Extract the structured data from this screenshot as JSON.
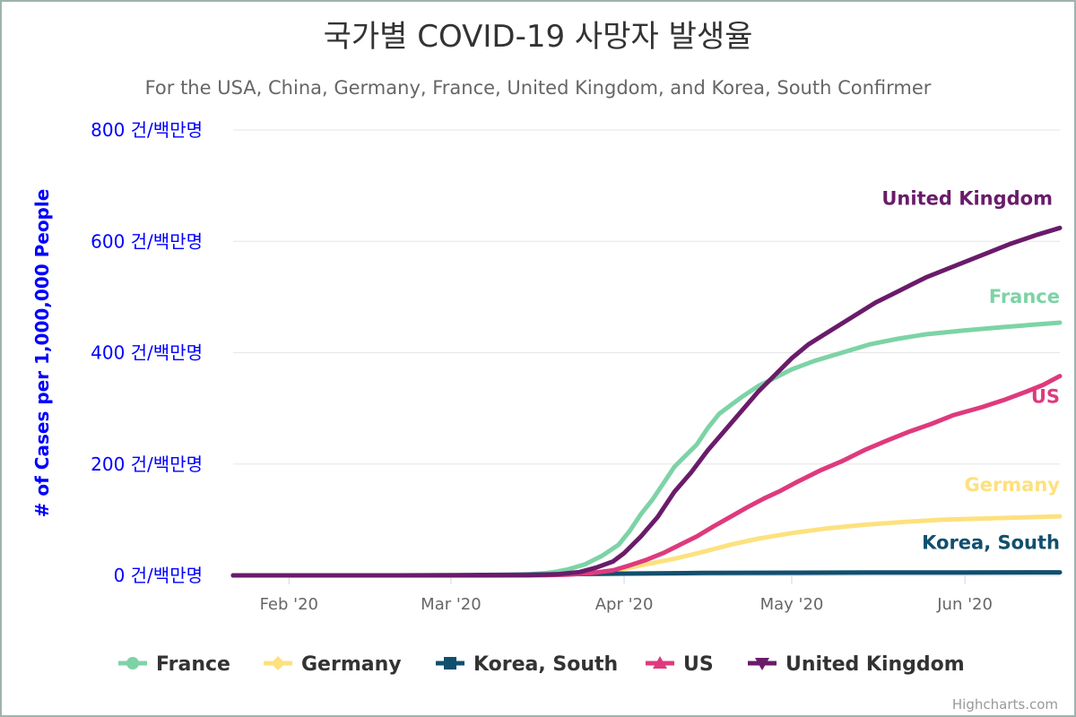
{
  "chart_data": {
    "type": "line",
    "title": "국가별 COVID-19 사망자 발생율",
    "subtitle": "For the USA, China, Germany, France, United Kingdom, and Korea, South Confirmer",
    "ylabel": "# of Cases per 1,000,000 People",
    "y_tick_suffix": " 건/백만명",
    "ylim": [
      0,
      800
    ],
    "y_ticks": [
      0,
      200,
      400,
      600,
      800
    ],
    "x_range": [
      "2020-01-22",
      "2020-06-18"
    ],
    "x_ticks": [
      {
        "date": "2020-02-01",
        "label": "Feb '20"
      },
      {
        "date": "2020-03-01",
        "label": "Mar '20"
      },
      {
        "date": "2020-04-01",
        "label": "Apr '20"
      },
      {
        "date": "2020-05-01",
        "label": "May '20"
      },
      {
        "date": "2020-06-01",
        "label": "Jun '20"
      }
    ],
    "grid": true,
    "legend_position": "bottom",
    "series": [
      {
        "name": "France",
        "color": "#7dd3a6",
        "marker": "circle",
        "points": [
          [
            "2020-01-22",
            0
          ],
          [
            "2020-03-01",
            0
          ],
          [
            "2020-03-10",
            0.5
          ],
          [
            "2020-03-15",
            2
          ],
          [
            "2020-03-18",
            4
          ],
          [
            "2020-03-20",
            7
          ],
          [
            "2020-03-22",
            11
          ],
          [
            "2020-03-25",
            20
          ],
          [
            "2020-03-28",
            35
          ],
          [
            "2020-03-31",
            55
          ],
          [
            "2020-04-02",
            80
          ],
          [
            "2020-04-04",
            110
          ],
          [
            "2020-04-06",
            135
          ],
          [
            "2020-04-08",
            165
          ],
          [
            "2020-04-10",
            195
          ],
          [
            "2020-04-12",
            215
          ],
          [
            "2020-04-14",
            235
          ],
          [
            "2020-04-16",
            265
          ],
          [
            "2020-04-18",
            290
          ],
          [
            "2020-04-20",
            305
          ],
          [
            "2020-04-22",
            320
          ],
          [
            "2020-04-25",
            340
          ],
          [
            "2020-04-28",
            355
          ],
          [
            "2020-05-01",
            370
          ],
          [
            "2020-05-05",
            385
          ],
          [
            "2020-05-10",
            400
          ],
          [
            "2020-05-15",
            415
          ],
          [
            "2020-05-20",
            425
          ],
          [
            "2020-05-25",
            433
          ],
          [
            "2020-06-01",
            440
          ],
          [
            "2020-06-08",
            446
          ],
          [
            "2020-06-13",
            450
          ],
          [
            "2020-06-18",
            454
          ]
        ]
      },
      {
        "name": "Germany",
        "color": "#fde17e",
        "marker": "diamond",
        "points": [
          [
            "2020-01-22",
            0
          ],
          [
            "2020-03-09",
            0
          ],
          [
            "2020-03-16",
            0.3
          ],
          [
            "2020-03-20",
            1
          ],
          [
            "2020-03-25",
            3
          ],
          [
            "2020-03-28",
            6
          ],
          [
            "2020-04-01",
            12
          ],
          [
            "2020-04-05",
            20
          ],
          [
            "2020-04-10",
            30
          ],
          [
            "2020-04-15",
            42
          ],
          [
            "2020-04-20",
            55
          ],
          [
            "2020-04-25",
            66
          ],
          [
            "2020-05-01",
            76
          ],
          [
            "2020-05-07",
            84
          ],
          [
            "2020-05-14",
            91
          ],
          [
            "2020-05-21",
            96
          ],
          [
            "2020-05-28",
            100
          ],
          [
            "2020-06-04",
            102
          ],
          [
            "2020-06-11",
            104
          ],
          [
            "2020-06-18",
            106
          ]
        ]
      },
      {
        "name": "Korea, South",
        "color": "#114f6e",
        "marker": "square",
        "points": [
          [
            "2020-01-22",
            0
          ],
          [
            "2020-02-20",
            0
          ],
          [
            "2020-03-01",
            0.3
          ],
          [
            "2020-03-15",
            1.5
          ],
          [
            "2020-04-01",
            3.2
          ],
          [
            "2020-04-15",
            4.4
          ],
          [
            "2020-05-01",
            4.8
          ],
          [
            "2020-05-15",
            5.1
          ],
          [
            "2020-06-01",
            5.3
          ],
          [
            "2020-06-18",
            5.5
          ]
        ]
      },
      {
        "name": "US",
        "color": "#de3a7d",
        "marker": "triangle",
        "points": [
          [
            "2020-01-22",
            0
          ],
          [
            "2020-03-01",
            0
          ],
          [
            "2020-03-10",
            0.1
          ],
          [
            "2020-03-18",
            0.5
          ],
          [
            "2020-03-22",
            1.5
          ],
          [
            "2020-03-26",
            4
          ],
          [
            "2020-03-30",
            9
          ],
          [
            "2020-04-02",
            18
          ],
          [
            "2020-04-05",
            28
          ],
          [
            "2020-04-08",
            40
          ],
          [
            "2020-04-11",
            55
          ],
          [
            "2020-04-14",
            70
          ],
          [
            "2020-04-17",
            88
          ],
          [
            "2020-04-20",
            105
          ],
          [
            "2020-04-23",
            122
          ],
          [
            "2020-04-26",
            138
          ],
          [
            "2020-04-29",
            152
          ],
          [
            "2020-05-02",
            168
          ],
          [
            "2020-05-06",
            188
          ],
          [
            "2020-05-10",
            205
          ],
          [
            "2020-05-14",
            225
          ],
          [
            "2020-05-18",
            242
          ],
          [
            "2020-05-22",
            258
          ],
          [
            "2020-05-26",
            272
          ],
          [
            "2020-05-30",
            288
          ],
          [
            "2020-06-04",
            302
          ],
          [
            "2020-06-08",
            315
          ],
          [
            "2020-06-12",
            330
          ],
          [
            "2020-06-15",
            342
          ],
          [
            "2020-06-18",
            358
          ]
        ]
      },
      {
        "name": "United Kingdom",
        "color": "#6a1b6a",
        "marker": "triangle-down",
        "points": [
          [
            "2020-01-22",
            0
          ],
          [
            "2020-03-05",
            0
          ],
          [
            "2020-03-15",
            0.5
          ],
          [
            "2020-03-20",
            2
          ],
          [
            "2020-03-24",
            6
          ],
          [
            "2020-03-27",
            14
          ],
          [
            "2020-03-30",
            25
          ],
          [
            "2020-04-01",
            40
          ],
          [
            "2020-04-04",
            70
          ],
          [
            "2020-04-07",
            105
          ],
          [
            "2020-04-10",
            150
          ],
          [
            "2020-04-13",
            185
          ],
          [
            "2020-04-16",
            225
          ],
          [
            "2020-04-19",
            260
          ],
          [
            "2020-04-22",
            295
          ],
          [
            "2020-04-25",
            330
          ],
          [
            "2020-04-28",
            360
          ],
          [
            "2020-05-01",
            390
          ],
          [
            "2020-05-04",
            415
          ],
          [
            "2020-05-08",
            440
          ],
          [
            "2020-05-12",
            465
          ],
          [
            "2020-05-16",
            490
          ],
          [
            "2020-05-20",
            510
          ],
          [
            "2020-05-25",
            535
          ],
          [
            "2020-05-30",
            555
          ],
          [
            "2020-06-04",
            575
          ],
          [
            "2020-06-09",
            595
          ],
          [
            "2020-06-14",
            612
          ],
          [
            "2020-06-18",
            624
          ]
        ]
      }
    ]
  },
  "credits": "Highcharts.com"
}
